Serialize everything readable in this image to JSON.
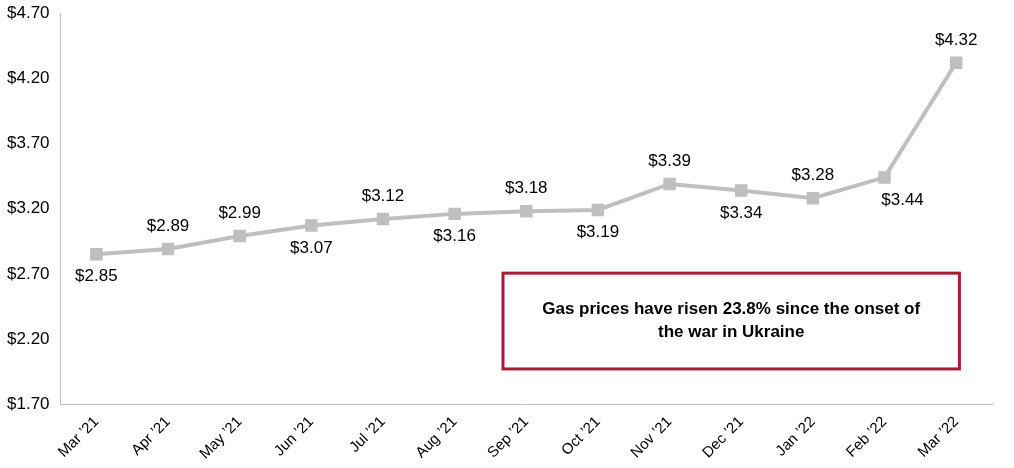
{
  "chart_data": {
    "type": "line",
    "categories": [
      "Mar ’21",
      "Apr ’21",
      "May ’21",
      "Jun ’21",
      "Jul ’21",
      "Aug ’21",
      "Sep ’21",
      "Oct ’21",
      "Nov ’21",
      "Dec ’21",
      "Jan ’22",
      "Feb ’22",
      "Mar ’22"
    ],
    "values": [
      2.85,
      2.89,
      2.99,
      3.07,
      3.12,
      3.16,
      3.18,
      3.19,
      3.39,
      3.34,
      3.28,
      3.44,
      4.32
    ],
    "value_labels": [
      "$2.85",
      "$2.89",
      "$2.99",
      "$3.07",
      "$3.12",
      "$3.16",
      "$3.18",
      "$3.19",
      "$3.39",
      "$3.34",
      "$3.28",
      "$3.44",
      "$4.32"
    ],
    "data_labels": true,
    "color": "#bfbfbf",
    "marker": "square",
    "line_style": "solid",
    "ylim": [
      1.7,
      4.7
    ],
    "yticks": [
      {
        "value": 1.7,
        "label": "$1.70"
      },
      {
        "value": 2.2,
        "label": "$2.20"
      },
      {
        "value": 2.7,
        "label": "$2.70"
      },
      {
        "value": 3.2,
        "label": "$3.20"
      },
      {
        "value": 3.7,
        "label": "$3.70"
      },
      {
        "value": 4.2,
        "label": "$4.20"
      },
      {
        "value": 4.7,
        "label": "$4.70"
      }
    ],
    "grid": false,
    "annotation": "Gas prices have risen 23.8% since the onset of the war in Ukraine"
  }
}
